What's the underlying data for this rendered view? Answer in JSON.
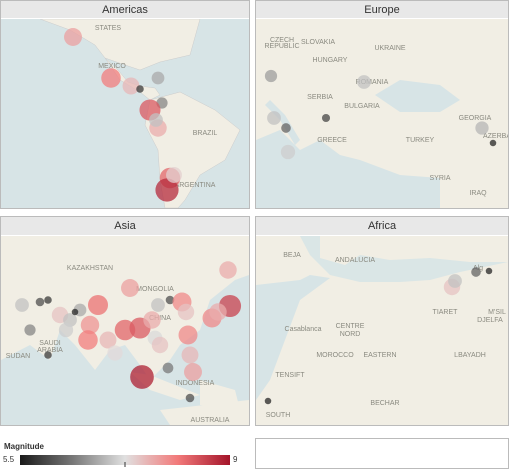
{
  "panels": [
    {
      "title": "Americas",
      "labels": [
        "STATES",
        "MEXICO",
        "BRAZIL",
        "ARGENTINA"
      ],
      "quakes": [
        7.8,
        8.1,
        7.6,
        5.8,
        6.8,
        6.5,
        8.4,
        7.7,
        7.0,
        8.3,
        8.8,
        7.4
      ]
    },
    {
      "title": "Europe",
      "labels": [
        "CZECH",
        "REPUBLIC",
        "SLOVAKIA",
        "HUNGARY",
        "UKRAINE",
        "ROMANIA",
        "SERBIA",
        "BULGARIA",
        "GREECE",
        "TURKEY",
        "GEORGIA",
        "AZERBA",
        "SYRIA",
        "IRAQ"
      ],
      "quakes": [
        6.7,
        7.0,
        7.0,
        6.2,
        7.1,
        5.9,
        6.9,
        5.6
      ]
    },
    {
      "title": "Asia",
      "labels": [
        "KAZAKHSTAN",
        "MONGOLIA",
        "CHINA",
        "SAUDI",
        "ARABIA",
        "SUDAN",
        "INDONESIA",
        "AUSTRALIA"
      ],
      "quakes": [
        7.7,
        7.0,
        6.0,
        5.8,
        7.5,
        7.0,
        6.8,
        7.9,
        8.2,
        8.1,
        7.6,
        8.3,
        7.8,
        8.4,
        7.7,
        7.2,
        7.0,
        7.5,
        6.0,
        8.0,
        7.5,
        8.0,
        7.6,
        8.0,
        8.6,
        7.7,
        8.9,
        6.4,
        7.8,
        6.0,
        5.8,
        6.5,
        7.1,
        7.3,
        5.6
      ]
    },
    {
      "title": "Africa",
      "labels": [
        "BEJA",
        "ANDALUCIA",
        "Casablanca",
        "CENTRE",
        "NORD",
        "MOROCCO",
        "EASTERN",
        "TIARET",
        "M'SIL",
        "DJELFA",
        "LBAYADH",
        "TENSIFT",
        "BECHAR",
        "SOUTH",
        "Alg"
      ],
      "quakes": [
        7.5,
        7.0,
        6.2,
        5.6,
        5.6
      ]
    }
  ],
  "legend": {
    "title": "Magnitude",
    "min": 5.5,
    "max": 9.0,
    "colors": [
      "#1a1a1a",
      "#777777",
      "#e0e0e0",
      "#f27a7a",
      "#a4142a"
    ]
  }
}
